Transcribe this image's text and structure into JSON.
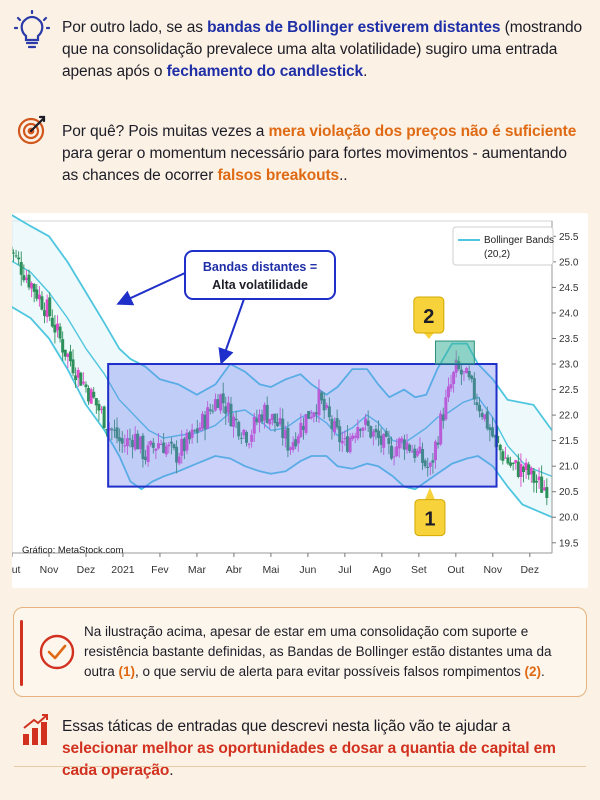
{
  "intro": {
    "p1_prefix": "Por outro lado, se as ",
    "p1_hl1": "bandas de Bollinger estiverem distantes",
    "p1_mid": " (mostrando que na consolidação prevalece uma alta volatilidade) sugiro uma entrada apenas após o ",
    "p1_hl2": "fechamento do candlestick",
    "p1_end": ".",
    "p2_prefix": "Por quê? Pois muitas vezes a ",
    "p2_hl1": "mera violação dos preços não é suficiente",
    "p2_mid": " para gerar o momentum necessário para fortes movimentos - aumentando as chances de ocorrer ",
    "p2_hl2": "falsos breakouts",
    "p2_end": ".."
  },
  "icons": {
    "p1": "lightbulb-icon",
    "p2": "target-icon",
    "card": "check-circle-icon",
    "footer": "growth-bars-icon"
  },
  "colors": {
    "band": "#4fc6df",
    "bull": "#e04cc9",
    "bear": "#2d8f5a",
    "range_fill": "#6d7cf0",
    "range_border": "#1f2fc9",
    "marker": "#f7d23a",
    "accent_blue": "#1f2fa7",
    "accent_orange": "#e06a14",
    "accent_red": "#d2311f"
  },
  "chart_data": {
    "type": "candlestick",
    "source": "Gráfico: MetaStock.com",
    "legend": {
      "name": "Bollinger Bands",
      "params": "(20,2)",
      "position": "top-right"
    },
    "x_labels": [
      "Out",
      "Nov",
      "Dez",
      "2021",
      "Fev",
      "Mar",
      "Abr",
      "Mai",
      "Jun",
      "Jul",
      "Ago",
      "Set",
      "Out",
      "Nov",
      "Dez"
    ],
    "y_ticks": [
      "25.5",
      "25.0",
      "24.5",
      "24.0",
      "23.5",
      "23.0",
      "22.5",
      "22.0",
      "21.5",
      "21.0",
      "20.5",
      "20.0",
      "19.5"
    ],
    "ylim": [
      19.3,
      25.8
    ],
    "x_range": [
      0,
      14.6
    ],
    "consolidation_box": {
      "x_start": 2.6,
      "x_end": 13.1,
      "y_low": 20.6,
      "y_high": 23.0
    },
    "highlight_box": {
      "x_start": 11.45,
      "x_end": 12.5,
      "y_low": 23.0,
      "y_high": 23.45
    },
    "callout": {
      "line1": "Bandas distantes =",
      "line2": "Alta volatilidade"
    },
    "markers": [
      {
        "label": "1",
        "x": 11.3,
        "y": 20.62
      },
      {
        "label": "2",
        "x": 11.27,
        "y": 23.45
      }
    ],
    "upper_band": [
      [
        -0.2,
        26.0
      ],
      [
        0.5,
        25.7
      ],
      [
        1.0,
        25.5
      ],
      [
        1.5,
        25.0
      ],
      [
        2.0,
        24.4
      ],
      [
        2.5,
        23.8
      ],
      [
        2.9,
        23.3
      ],
      [
        3.2,
        23.1
      ],
      [
        3.6,
        22.95
      ],
      [
        4.0,
        22.7
      ],
      [
        4.5,
        22.6
      ],
      [
        5.0,
        22.4
      ],
      [
        5.5,
        22.6
      ],
      [
        5.9,
        23.0
      ],
      [
        6.3,
        22.85
      ],
      [
        6.7,
        22.6
      ],
      [
        7.0,
        22.55
      ],
      [
        7.4,
        22.7
      ],
      [
        7.8,
        22.8
      ],
      [
        8.1,
        22.6
      ],
      [
        8.5,
        22.4
      ],
      [
        8.8,
        22.55
      ],
      [
        9.2,
        22.9
      ],
      [
        9.6,
        22.9
      ],
      [
        9.9,
        22.6
      ],
      [
        10.2,
        22.35
      ],
      [
        10.6,
        22.5
      ],
      [
        10.9,
        22.35
      ],
      [
        11.2,
        22.4
      ],
      [
        11.5,
        22.9
      ],
      [
        11.9,
        23.4
      ],
      [
        12.3,
        23.4
      ],
      [
        12.6,
        23.0
      ],
      [
        13.0,
        22.7
      ],
      [
        13.4,
        22.3
      ],
      [
        14.1,
        22.2
      ],
      [
        14.6,
        21.7
      ]
    ],
    "middle_band": [
      [
        -0.2,
        25.1
      ],
      [
        0.5,
        24.8
      ],
      [
        1.0,
        24.4
      ],
      [
        1.5,
        23.9
      ],
      [
        2.0,
        23.3
      ],
      [
        2.5,
        22.8
      ],
      [
        2.9,
        22.3
      ],
      [
        3.3,
        22.0
      ],
      [
        3.7,
        21.7
      ],
      [
        4.1,
        21.55
      ],
      [
        4.5,
        21.6
      ],
      [
        5.0,
        21.65
      ],
      [
        5.5,
        21.8
      ],
      [
        5.9,
        22.05
      ],
      [
        6.3,
        22.1
      ],
      [
        6.7,
        21.9
      ],
      [
        7.0,
        21.7
      ],
      [
        7.4,
        21.75
      ],
      [
        7.8,
        21.95
      ],
      [
        8.1,
        22.05
      ],
      [
        8.5,
        21.85
      ],
      [
        8.8,
        21.6
      ],
      [
        9.2,
        21.75
      ],
      [
        9.6,
        22.0
      ],
      [
        9.9,
        21.85
      ],
      [
        10.3,
        21.5
      ],
      [
        10.6,
        21.45
      ],
      [
        10.9,
        21.6
      ],
      [
        11.2,
        21.75
      ],
      [
        11.5,
        21.95
      ],
      [
        11.8,
        22.05
      ],
      [
        12.2,
        22.25
      ],
      [
        12.6,
        22.35
      ],
      [
        13.0,
        21.95
      ],
      [
        13.4,
        21.4
      ],
      [
        13.9,
        21.0
      ],
      [
        14.6,
        20.8
      ]
    ],
    "lower_band": [
      [
        -0.2,
        24.2
      ],
      [
        0.5,
        23.9
      ],
      [
        1.0,
        23.5
      ],
      [
        1.5,
        22.9
      ],
      [
        2.0,
        22.2
      ],
      [
        2.5,
        21.7
      ],
      [
        2.9,
        21.2
      ],
      [
        3.2,
        20.7
      ],
      [
        3.5,
        20.55
      ],
      [
        3.8,
        20.7
      ],
      [
        4.1,
        20.8
      ],
      [
        4.5,
        20.9
      ],
      [
        5.0,
        21.05
      ],
      [
        5.5,
        21.2
      ],
      [
        5.9,
        21.15
      ],
      [
        6.3,
        21.0
      ],
      [
        6.7,
        20.9
      ],
      [
        7.0,
        20.85
      ],
      [
        7.4,
        20.9
      ],
      [
        7.8,
        21.1
      ],
      [
        8.1,
        21.2
      ],
      [
        8.5,
        21.2
      ],
      [
        8.8,
        21.0
      ],
      [
        9.2,
        20.95
      ],
      [
        9.6,
        21.05
      ],
      [
        9.9,
        21.0
      ],
      [
        10.3,
        20.8
      ],
      [
        10.6,
        20.6
      ],
      [
        10.9,
        20.55
      ],
      [
        11.2,
        20.7
      ],
      [
        11.5,
        20.85
      ],
      [
        11.9,
        21.05
      ],
      [
        12.3,
        21.15
      ],
      [
        12.6,
        21.2
      ],
      [
        13.0,
        21.0
      ],
      [
        13.4,
        20.6
      ],
      [
        13.8,
        20.25
      ],
      [
        14.6,
        20.0
      ]
    ],
    "close_path": [
      [
        -0.1,
        25.3
      ],
      [
        0.5,
        24.6
      ],
      [
        1.0,
        24.0
      ],
      [
        1.4,
        23.3
      ],
      [
        1.8,
        22.8
      ],
      [
        2.2,
        22.3
      ],
      [
        2.6,
        21.8
      ],
      [
        3.0,
        21.4
      ],
      [
        3.3,
        21.6
      ],
      [
        3.6,
        21.2
      ],
      [
        4.0,
        21.5
      ],
      [
        4.4,
        21.2
      ],
      [
        4.8,
        21.5
      ],
      [
        5.2,
        21.9
      ],
      [
        5.6,
        22.4
      ],
      [
        6.0,
        21.9
      ],
      [
        6.4,
        21.6
      ],
      [
        6.8,
        22.1
      ],
      [
        7.2,
        21.8
      ],
      [
        7.5,
        21.4
      ],
      [
        7.9,
        21.9
      ],
      [
        8.3,
        22.3
      ],
      [
        8.7,
        21.7
      ],
      [
        9.0,
        21.4
      ],
      [
        9.4,
        21.9
      ],
      [
        9.8,
        21.6
      ],
      [
        10.2,
        21.3
      ],
      [
        10.6,
        21.5
      ],
      [
        11.0,
        21.2
      ],
      [
        11.3,
        20.9
      ],
      [
        11.6,
        21.9
      ],
      [
        12.0,
        22.9
      ],
      [
        12.3,
        22.7
      ],
      [
        12.7,
        22.1
      ],
      [
        13.1,
        21.4
      ],
      [
        13.5,
        21.0
      ],
      [
        13.9,
        20.9
      ],
      [
        14.3,
        20.6
      ],
      [
        14.5,
        20.6
      ]
    ]
  },
  "card": {
    "text_a": "Na ilustração acima, apesar de estar em uma consolidação com suporte e resistência bastante definidas, as Bandas de Bollinger estão distantes uma da outra ",
    "num_1": "(1)",
    "text_b": ", o que serviu de alerta para evitar possíveis falsos rompimentos ",
    "num_2": "(2)",
    "text_c": "."
  },
  "footer": {
    "prefix": "Essas táticas de entradas que descrevi nesta lição vão te ajudar a ",
    "hl": "selecionar melhor as oportunidades e dosar a quantia de capital em cada operação",
    "end": "."
  }
}
